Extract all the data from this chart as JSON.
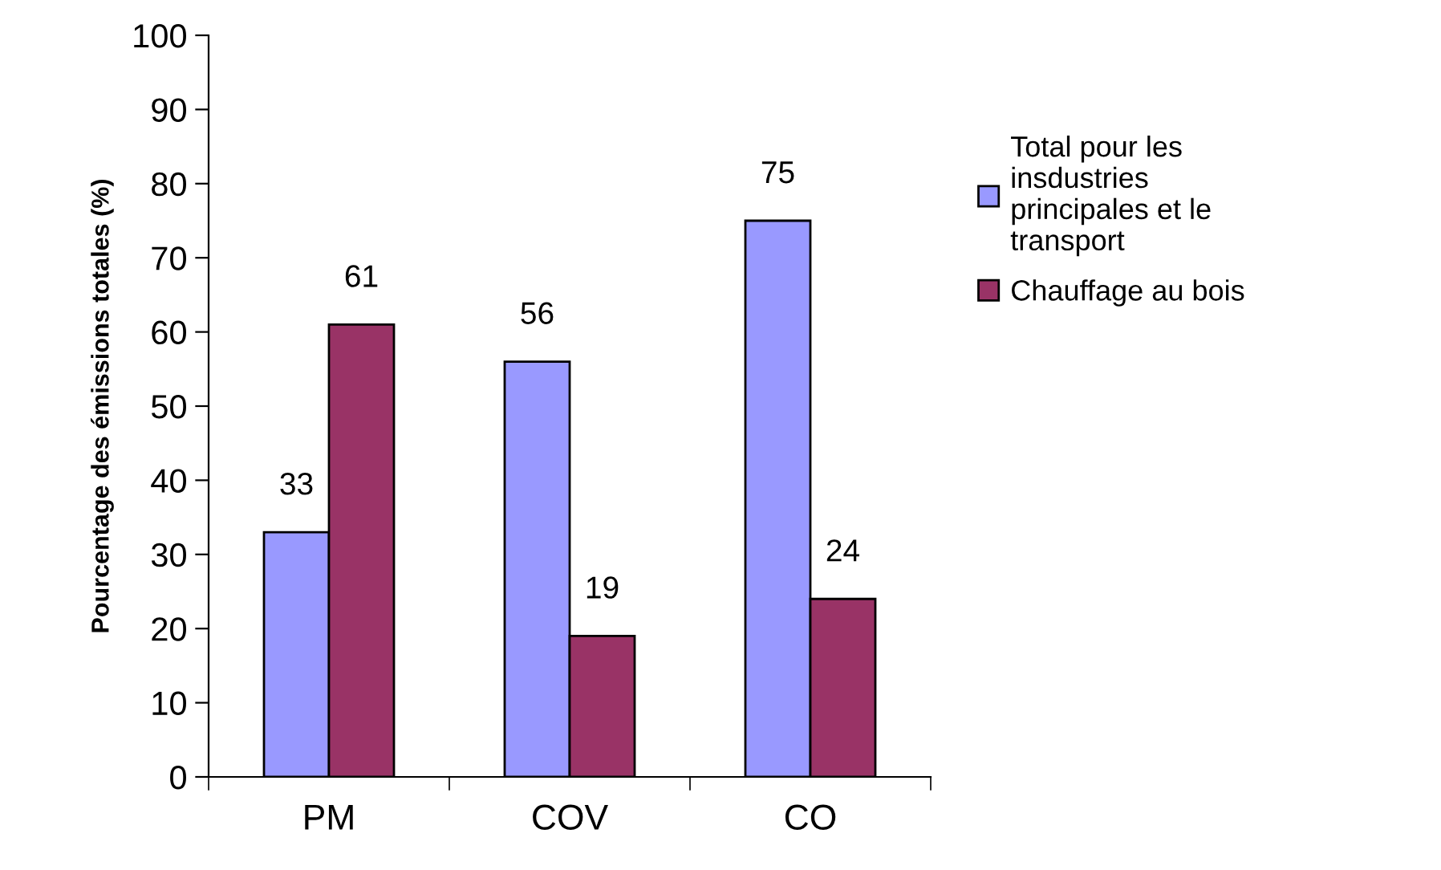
{
  "chart_data": {
    "type": "bar",
    "ylabel": "Pourcentage des émissions totales (%)",
    "categories": [
      "PM",
      "COV",
      "CO"
    ],
    "series": [
      {
        "name": "Total pour les\ninsdustries\nprincipales et le\ntransport",
        "color": "#9999ff",
        "values": [
          33,
          56,
          75
        ]
      },
      {
        "name": "Chauffage au bois",
        "color": "#993366",
        "values": [
          61,
          19,
          24
        ]
      }
    ],
    "ylim": [
      0,
      100
    ],
    "yticks": [
      0,
      10,
      20,
      30,
      40,
      50,
      60,
      70,
      80,
      90,
      100
    ],
    "data_labels": true,
    "legend": "right",
    "grid": false
  }
}
